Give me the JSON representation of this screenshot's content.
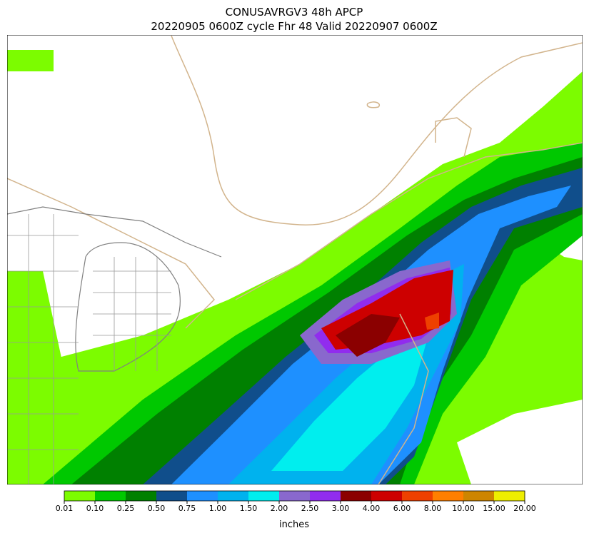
{
  "title": "CONUSAVRGV3 48h APCP",
  "subtitle": "20220905 0600Z cycle Fhr 48 Valid 20220907 0600Z",
  "colorbar": {
    "levels": [
      "0.01",
      "0.10",
      "0.25",
      "0.50",
      "0.75",
      "1.00",
      "1.50",
      "2.00",
      "2.50",
      "3.00",
      "4.00",
      "6.00",
      "8.00",
      "10.00",
      "15.00",
      "20.00"
    ],
    "colors": [
      "#7cfc00",
      "#00c800",
      "#008000",
      "#104e8b",
      "#1e90ff",
      "#00b2ee",
      "#00eeee",
      "#8968cd",
      "#912cee",
      "#8b0000",
      "#cd0000",
      "#ee4000",
      "#ff7f00",
      "#cd8500",
      "#eeee00"
    ],
    "label": "inches"
  }
}
